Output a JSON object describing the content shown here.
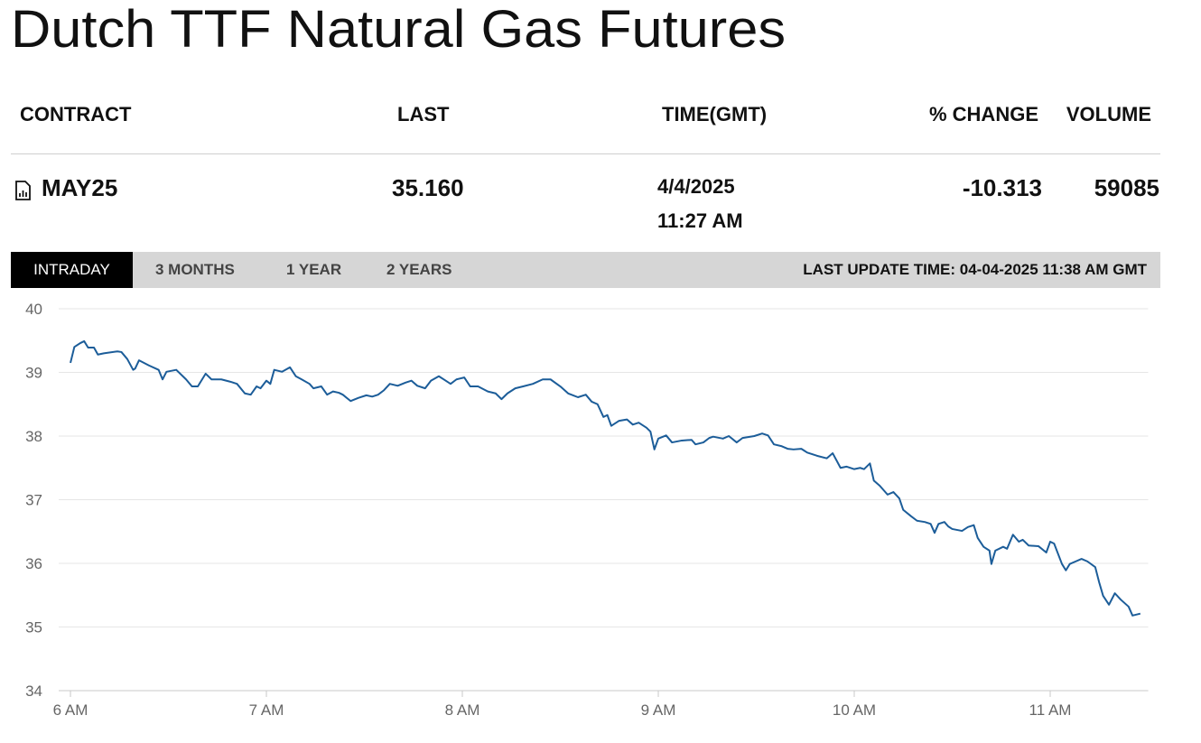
{
  "header": {
    "title": "Dutch TTF Natural Gas Futures"
  },
  "table": {
    "columns": [
      "CONTRACT",
      "LAST",
      "TIME(GMT)",
      "% CHANGE",
      "VOLUME"
    ],
    "row": {
      "contract": "MAY25",
      "last": "35.160",
      "date": "4/4/2025",
      "time": "11:27 AM",
      "change": "-10.313",
      "volume": "59085"
    }
  },
  "tabs": [
    "INTRADAY",
    "3 MONTHS",
    "1 YEAR",
    "2 YEARS"
  ],
  "last_update": "LAST UPDATE TIME: 04-04-2025 11:38 AM GMT",
  "chart_data": {
    "type": "line",
    "color": "#1c5d99",
    "grid": true,
    "xlim": [
      5.94,
      11.5
    ],
    "ylim": [
      34,
      40
    ],
    "yticks": [
      34,
      35,
      36,
      37,
      38,
      39,
      40
    ],
    "xticks": [
      {
        "value": 6,
        "label": "6 AM"
      },
      {
        "value": 7,
        "label": "7 AM"
      },
      {
        "value": 8,
        "label": "8 AM"
      },
      {
        "value": 9,
        "label": "9 AM"
      },
      {
        "value": 10,
        "label": "10 AM"
      },
      {
        "value": 11,
        "label": "11 AM"
      }
    ],
    "x": [
      6.0,
      6.02,
      6.05,
      6.07,
      6.09,
      6.12,
      6.14,
      6.17,
      6.24,
      6.26,
      6.29,
      6.32,
      6.33,
      6.35,
      6.4,
      6.45,
      6.47,
      6.49,
      6.54,
      6.59,
      6.62,
      6.65,
      6.69,
      6.72,
      6.77,
      6.82,
      6.85,
      6.89,
      6.92,
      6.95,
      6.97,
      7.0,
      7.02,
      7.04,
      7.08,
      7.12,
      7.15,
      7.18,
      7.22,
      7.24,
      7.28,
      7.31,
      7.34,
      7.37,
      7.39,
      7.43,
      7.47,
      7.51,
      7.54,
      7.57,
      7.6,
      7.63,
      7.67,
      7.71,
      7.74,
      7.77,
      7.81,
      7.84,
      7.88,
      7.91,
      7.94,
      7.97,
      8.01,
      8.04,
      8.08,
      8.13,
      8.17,
      8.2,
      8.23,
      8.27,
      8.31,
      8.36,
      8.41,
      8.45,
      8.5,
      8.54,
      8.59,
      8.63,
      8.66,
      8.69,
      8.72,
      8.74,
      8.76,
      8.8,
      8.84,
      8.87,
      8.9,
      8.94,
      8.96,
      8.98,
      9.0,
      9.04,
      9.07,
      9.12,
      9.17,
      9.19,
      9.23,
      9.26,
      9.28,
      9.33,
      9.36,
      9.4,
      9.43,
      9.49,
      9.53,
      9.56,
      9.59,
      9.63,
      9.66,
      9.69,
      9.73,
      9.76,
      9.81,
      9.86,
      9.89,
      9.93,
      9.96,
      10.0,
      10.03,
      10.05,
      10.08,
      10.1,
      10.13,
      10.17,
      10.2,
      10.23,
      10.25,
      10.29,
      10.32,
      10.36,
      10.39,
      10.41,
      10.43,
      10.46,
      10.48,
      10.5,
      10.55,
      10.58,
      10.61,
      10.63,
      10.66,
      10.69,
      10.7,
      10.72,
      10.76,
      10.78,
      10.81,
      10.84,
      10.86,
      10.89,
      10.94,
      10.98,
      11.0,
      11.02,
      11.06,
      11.08,
      11.1,
      11.13,
      11.16,
      11.19,
      11.23,
      11.25,
      11.27,
      11.3,
      11.33,
      11.36,
      11.4,
      11.42,
      11.46
    ],
    "values": [
      39.15,
      39.4,
      39.46,
      39.49,
      39.39,
      39.39,
      39.28,
      39.3,
      39.33,
      39.32,
      39.21,
      39.04,
      39.06,
      39.19,
      39.11,
      39.04,
      38.89,
      39.01,
      39.04,
      38.89,
      38.78,
      38.78,
      38.98,
      38.89,
      38.89,
      38.85,
      38.82,
      38.67,
      38.65,
      38.78,
      38.75,
      38.87,
      38.82,
      39.04,
      39.01,
      39.08,
      38.94,
      38.89,
      38.82,
      38.75,
      38.78,
      38.65,
      38.7,
      38.68,
      38.65,
      38.55,
      38.6,
      38.64,
      38.62,
      38.65,
      38.72,
      38.82,
      38.79,
      38.84,
      38.87,
      38.79,
      38.75,
      38.87,
      38.94,
      38.88,
      38.82,
      38.89,
      38.92,
      38.78,
      38.78,
      38.7,
      38.67,
      38.58,
      38.67,
      38.75,
      38.78,
      38.82,
      38.89,
      38.89,
      38.78,
      38.67,
      38.61,
      38.65,
      38.54,
      38.5,
      38.3,
      38.33,
      38.16,
      38.24,
      38.26,
      38.18,
      38.21,
      38.13,
      38.07,
      37.79,
      37.96,
      38.01,
      37.9,
      37.93,
      37.94,
      37.87,
      37.9,
      37.97,
      37.99,
      37.96,
      38.0,
      37.9,
      37.97,
      38.0,
      38.04,
      38.01,
      37.87,
      37.84,
      37.8,
      37.79,
      37.8,
      37.74,
      37.69,
      37.65,
      37.73,
      37.5,
      37.52,
      37.48,
      37.5,
      37.48,
      37.57,
      37.3,
      37.22,
      37.08,
      37.12,
      37.02,
      36.84,
      36.74,
      36.67,
      36.65,
      36.62,
      36.48,
      36.62,
      36.65,
      36.58,
      36.54,
      36.51,
      36.57,
      36.6,
      36.4,
      36.26,
      36.2,
      35.99,
      36.2,
      36.26,
      36.23,
      36.45,
      36.34,
      36.37,
      36.28,
      36.27,
      36.17,
      36.34,
      36.31,
      35.99,
      35.89,
      35.99,
      36.03,
      36.07,
      36.03,
      35.94,
      35.7,
      35.49,
      35.35,
      35.53,
      35.43,
      35.32,
      35.18,
      35.21
    ]
  }
}
